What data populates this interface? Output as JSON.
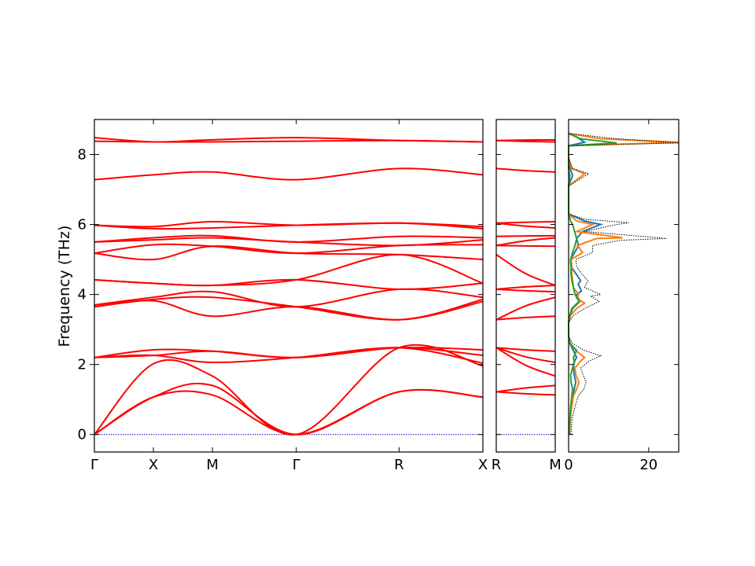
{
  "chart_data": [
    {
      "type": "line",
      "panel": "band-structure-main",
      "title": "",
      "xlabel": "",
      "ylabel": "Frequency (THz)",
      "ylim": [
        -0.5,
        9.0
      ],
      "yticks": [
        0,
        2,
        4,
        6,
        8
      ],
      "x_tick_labels": [
        "Γ",
        "X",
        "M",
        "Γ",
        "R",
        "X"
      ],
      "x_tick_positions": [
        0.0,
        0.5,
        1.0,
        1.71,
        2.58,
        3.29
      ],
      "xlim": [
        0.0,
        3.29
      ],
      "line_color": "#ff0000",
      "zero_line_color": "#0000cc",
      "grid": false,
      "bands": [
        {
          "x": [
            0.0,
            0.5,
            1.0,
            1.71,
            2.58,
            3.29
          ],
          "y": [
            0.0,
            1.07,
            1.13,
            0.0,
            1.22,
            1.07
          ]
        },
        {
          "x": [
            0.0,
            0.5,
            1.0,
            1.71,
            2.58,
            3.29
          ],
          "y": [
            0.0,
            1.07,
            1.4,
            0.0,
            1.22,
            1.07
          ]
        },
        {
          "x": [
            0.0,
            0.5,
            1.0,
            1.71,
            2.58,
            3.29
          ],
          "y": [
            0.0,
            2.02,
            1.67,
            0.0,
            2.48,
            1.96
          ]
        },
        {
          "x": [
            0.0,
            0.5,
            1.0,
            1.71,
            2.58,
            3.29
          ],
          "y": [
            2.2,
            2.26,
            2.06,
            2.2,
            2.48,
            2.04
          ]
        },
        {
          "x": [
            0.0,
            0.5,
            1.0,
            1.71,
            2.58,
            3.29
          ],
          "y": [
            2.2,
            2.26,
            2.38,
            2.2,
            2.48,
            2.26
          ]
        },
        {
          "x": [
            0.0,
            0.5,
            1.0,
            1.71,
            2.58,
            3.29
          ],
          "y": [
            2.2,
            2.42,
            2.38,
            2.2,
            2.48,
            2.42
          ]
        },
        {
          "x": [
            0.0,
            0.5,
            1.0,
            1.71,
            2.58,
            3.29
          ],
          "y": [
            3.65,
            3.82,
            3.38,
            3.65,
            3.28,
            3.8
          ]
        },
        {
          "x": [
            0.0,
            0.5,
            1.0,
            1.71,
            2.58,
            3.29
          ],
          "y": [
            3.65,
            3.86,
            3.92,
            3.65,
            3.28,
            3.86
          ]
        },
        {
          "x": [
            0.0,
            0.5,
            1.0,
            1.71,
            2.58,
            3.29
          ],
          "y": [
            3.7,
            3.92,
            4.08,
            3.65,
            4.15,
            3.92
          ]
        },
        {
          "x": [
            0.0,
            0.5,
            1.0,
            1.71,
            2.58,
            3.29
          ],
          "y": [
            4.42,
            4.32,
            4.26,
            4.42,
            4.15,
            4.32
          ]
        },
        {
          "x": [
            0.0,
            0.5,
            1.0,
            1.71,
            2.58,
            3.29
          ],
          "y": [
            4.42,
            4.32,
            4.26,
            4.42,
            5.14,
            4.32
          ]
        },
        {
          "x": [
            0.0,
            0.5,
            1.0,
            1.71,
            2.58,
            3.29
          ],
          "y": [
            5.18,
            5.0,
            5.38,
            5.18,
            5.14,
            5.0
          ]
        },
        {
          "x": [
            0.0,
            0.5,
            1.0,
            1.71,
            2.58,
            3.29
          ],
          "y": [
            5.18,
            5.42,
            5.38,
            5.18,
            5.4,
            5.42
          ]
        },
        {
          "x": [
            0.0,
            0.5,
            1.0,
            1.71,
            2.58,
            3.29
          ],
          "y": [
            5.5,
            5.56,
            5.62,
            5.5,
            5.4,
            5.56
          ]
        },
        {
          "x": [
            0.0,
            0.5,
            1.0,
            1.71,
            2.58,
            3.29
          ],
          "y": [
            5.5,
            5.62,
            5.68,
            5.5,
            5.66,
            5.62
          ]
        },
        {
          "x": [
            0.0,
            0.5,
            1.0,
            1.71,
            2.58,
            3.29
          ],
          "y": [
            5.98,
            5.88,
            5.9,
            5.98,
            6.04,
            5.88
          ]
        },
        {
          "x": [
            0.0,
            0.5,
            1.0,
            1.71,
            2.58,
            3.29
          ],
          "y": [
            5.98,
            5.94,
            6.08,
            5.98,
            6.04,
            5.94
          ]
        },
        {
          "x": [
            0.0,
            0.5,
            1.0,
            1.71,
            2.58,
            3.29
          ],
          "y": [
            7.28,
            7.42,
            7.5,
            7.28,
            7.6,
            7.42
          ]
        },
        {
          "x": [
            0.0,
            0.5,
            1.0,
            1.71,
            2.58,
            3.29
          ],
          "y": [
            8.38,
            8.36,
            8.36,
            8.38,
            8.4,
            8.36
          ]
        },
        {
          "x": [
            0.0,
            0.5,
            1.0,
            1.71,
            2.58,
            3.29
          ],
          "y": [
            8.48,
            8.36,
            8.42,
            8.48,
            8.4,
            8.36
          ]
        }
      ]
    },
    {
      "type": "line",
      "panel": "band-structure-segment",
      "xlabel": "",
      "ylabel": "",
      "ylim": [
        -0.5,
        9.0
      ],
      "x_tick_labels": [
        "R",
        "M"
      ],
      "x_tick_positions": [
        0.0,
        1.0
      ],
      "xlim": [
        0.0,
        1.0
      ],
      "line_color": "#ff0000",
      "zero_line_color": "#0000cc",
      "bands": [
        {
          "y": [
            1.22,
            1.13
          ]
        },
        {
          "y": [
            1.22,
            1.4
          ]
        },
        {
          "y": [
            2.48,
            1.67
          ]
        },
        {
          "y": [
            2.48,
            2.06
          ]
        },
        {
          "y": [
            2.48,
            2.38
          ]
        },
        {
          "y": [
            3.28,
            3.38
          ]
        },
        {
          "y": [
            3.28,
            3.92
          ]
        },
        {
          "y": [
            4.15,
            4.08
          ]
        },
        {
          "y": [
            4.15,
            4.26
          ]
        },
        {
          "y": [
            5.14,
            4.26
          ]
        },
        {
          "y": [
            5.4,
            5.38
          ]
        },
        {
          "y": [
            5.4,
            5.62
          ]
        },
        {
          "y": [
            5.66,
            5.68
          ]
        },
        {
          "y": [
            6.04,
            5.9
          ]
        },
        {
          "y": [
            6.04,
            6.08
          ]
        },
        {
          "y": [
            7.6,
            7.5
          ]
        },
        {
          "y": [
            8.4,
            8.36
          ]
        },
        {
          "y": [
            8.4,
            8.42
          ]
        }
      ]
    },
    {
      "type": "line",
      "panel": "partial-dos",
      "xlabel": "",
      "ylabel": "",
      "ylim": [
        -0.5,
        9.0
      ],
      "xlim": [
        0,
        27.5
      ],
      "xticks": [
        0,
        20
      ],
      "series": [
        {
          "color": "#1f77b4",
          "style": "solid",
          "points": [
            [
              0.2,
              0
            ],
            [
              0.3,
              0.3
            ],
            [
              0.5,
              0.6
            ],
            [
              0.8,
              0.9
            ],
            [
              1.0,
              1.1
            ],
            [
              1.4,
              1.3
            ],
            [
              1.8,
              1.5
            ],
            [
              1.4,
              1.7
            ],
            [
              1.2,
              1.9
            ],
            [
              1.5,
              2.1
            ],
            [
              2.0,
              2.2
            ],
            [
              1.2,
              2.4
            ],
            [
              0.3,
              2.6
            ],
            [
              0,
              2.8
            ],
            [
              0,
              3.2
            ],
            [
              0.4,
              3.4
            ],
            [
              1.0,
              3.6
            ],
            [
              2.8,
              3.8
            ],
            [
              2.0,
              4.0
            ],
            [
              3.2,
              4.1
            ],
            [
              2.4,
              4.3
            ],
            [
              3.0,
              4.4
            ],
            [
              1.8,
              4.6
            ],
            [
              0.6,
              4.8
            ],
            [
              0.5,
              5.0
            ],
            [
              1.5,
              5.2
            ],
            [
              2.5,
              5.4
            ],
            [
              2.0,
              5.6
            ],
            [
              3.5,
              5.8
            ],
            [
              8.0,
              6.0
            ],
            [
              4.0,
              6.1
            ],
            [
              0,
              6.3
            ],
            [
              0,
              7.1
            ],
            [
              1.0,
              7.4
            ],
            [
              0.4,
              7.6
            ],
            [
              0,
              7.9
            ],
            [
              0,
              8.25
            ],
            [
              4.0,
              8.35
            ],
            [
              2.0,
              8.5
            ],
            [
              0,
              8.6
            ]
          ]
        },
        {
          "color": "#ff7f0e",
          "style": "solid",
          "points": [
            [
              0.2,
              0
            ],
            [
              0.4,
              0.4
            ],
            [
              0.8,
              0.8
            ],
            [
              1.2,
              1.1
            ],
            [
              2.0,
              1.3
            ],
            [
              2.6,
              1.5
            ],
            [
              1.8,
              1.7
            ],
            [
              1.6,
              1.9
            ],
            [
              3.0,
              2.1
            ],
            [
              4.0,
              2.2
            ],
            [
              1.8,
              2.4
            ],
            [
              0.4,
              2.6
            ],
            [
              0,
              2.8
            ],
            [
              0,
              3.2
            ],
            [
              0.5,
              3.4
            ],
            [
              2.0,
              3.6
            ],
            [
              4.0,
              3.75
            ],
            [
              2.0,
              3.9
            ],
            [
              2.5,
              4.0
            ],
            [
              1.2,
              4.2
            ],
            [
              1.0,
              4.4
            ],
            [
              0.8,
              4.6
            ],
            [
              0.8,
              4.8
            ],
            [
              0.6,
              5.0
            ],
            [
              3.5,
              5.2
            ],
            [
              2.2,
              5.4
            ],
            [
              7.0,
              5.6
            ],
            [
              13.5,
              5.62
            ],
            [
              2.0,
              5.8
            ],
            [
              6.0,
              6.0
            ],
            [
              2.0,
              6.1
            ],
            [
              0,
              6.3
            ],
            [
              0,
              7.1
            ],
            [
              4.0,
              7.45
            ],
            [
              0.8,
              7.6
            ],
            [
              0,
              7.9
            ],
            [
              0,
              8.25
            ],
            [
              27.5,
              8.35
            ],
            [
              8.0,
              8.45
            ],
            [
              0,
              8.6
            ]
          ]
        },
        {
          "color": "#2ca02c",
          "style": "solid",
          "points": [
            [
              0.2,
              0
            ],
            [
              0.3,
              0.4
            ],
            [
              0.5,
              0.8
            ],
            [
              0.8,
              1.1
            ],
            [
              1.0,
              1.3
            ],
            [
              0.6,
              1.5
            ],
            [
              0.5,
              1.7
            ],
            [
              1.0,
              1.9
            ],
            [
              1.4,
              2.1
            ],
            [
              1.2,
              2.2
            ],
            [
              2.0,
              2.4
            ],
            [
              0.4,
              2.6
            ],
            [
              0,
              2.8
            ],
            [
              0,
              3.2
            ],
            [
              0.3,
              3.4
            ],
            [
              0.8,
              3.6
            ],
            [
              2.6,
              3.8
            ],
            [
              1.6,
              4.0
            ],
            [
              1.2,
              4.2
            ],
            [
              0.8,
              4.4
            ],
            [
              0.6,
              4.6
            ],
            [
              0.6,
              4.8
            ],
            [
              0.5,
              5.0
            ],
            [
              1.0,
              5.2
            ],
            [
              1.6,
              5.4
            ],
            [
              2.0,
              5.6
            ],
            [
              1.5,
              5.8
            ],
            [
              1.0,
              6.0
            ],
            [
              0.5,
              6.1
            ],
            [
              0,
              6.3
            ],
            [
              0,
              7.1
            ],
            [
              0.3,
              7.4
            ],
            [
              0,
              7.6
            ],
            [
              0,
              8.25
            ],
            [
              12.0,
              8.33
            ],
            [
              3.0,
              8.45
            ],
            [
              0,
              8.6
            ]
          ]
        },
        {
          "color": "#000000",
          "style": "dotted",
          "points": [
            [
              0.6,
              0
            ],
            [
              0.8,
              0.4
            ],
            [
              1.6,
              0.8
            ],
            [
              2.4,
              1.1
            ],
            [
              3.8,
              1.3
            ],
            [
              4.4,
              1.5
            ],
            [
              3.6,
              1.7
            ],
            [
              3.0,
              1.9
            ],
            [
              5.2,
              2.1
            ],
            [
              8.0,
              2.25
            ],
            [
              4.0,
              2.4
            ],
            [
              1.0,
              2.6
            ],
            [
              0,
              2.8
            ],
            [
              0,
              3.2
            ],
            [
              1.2,
              3.4
            ],
            [
              4.0,
              3.6
            ],
            [
              7.6,
              3.8
            ],
            [
              5.6,
              3.95
            ],
            [
              8.0,
              4.0
            ],
            [
              4.0,
              4.2
            ],
            [
              4.8,
              4.4
            ],
            [
              3.2,
              4.6
            ],
            [
              2.0,
              4.8
            ],
            [
              1.8,
              5.0
            ],
            [
              6.0,
              5.2
            ],
            [
              6.0,
              5.4
            ],
            [
              13.0,
              5.55
            ],
            [
              24.5,
              5.6
            ],
            [
              4.0,
              5.8
            ],
            [
              12.0,
              6.0
            ],
            [
              15.0,
              6.05
            ],
            [
              4.0,
              6.15
            ],
            [
              0,
              6.3
            ],
            [
              0,
              7.1
            ],
            [
              5.0,
              7.45
            ],
            [
              1.0,
              7.6
            ],
            [
              0,
              7.9
            ],
            [
              0,
              8.25
            ],
            [
              27.5,
              8.33
            ],
            [
              12.0,
              8.45
            ],
            [
              0,
              8.6
            ]
          ]
        }
      ]
    }
  ]
}
